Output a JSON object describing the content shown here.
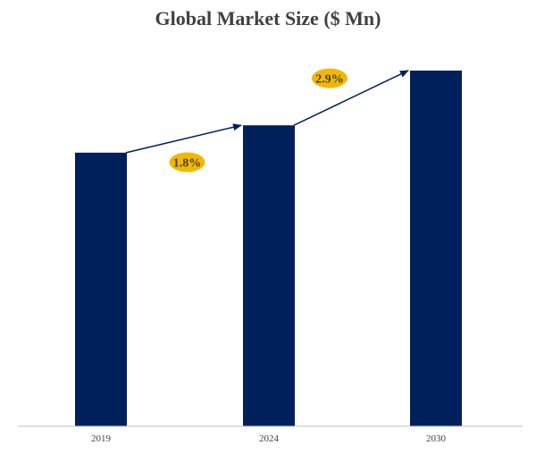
{
  "colors": {
    "bar": "#00205b",
    "arrow": "#00205b",
    "badge": "#f2b800",
    "axis": "#bfbfbf"
  },
  "chart_data": {
    "type": "bar",
    "title": "Global Market Size ($ Mn)",
    "categories": [
      "2019",
      "2024",
      "2030"
    ],
    "values": [
      100,
      110,
      130
    ],
    "xlabel": "",
    "ylabel": "",
    "ylim": [
      0,
      146
    ],
    "grid": false,
    "legend": "none",
    "annotations": [
      {
        "text": "1.8%",
        "from": "2019",
        "to": "2024"
      },
      {
        "text": "2.9%",
        "from": "2024",
        "to": "2030"
      }
    ]
  }
}
